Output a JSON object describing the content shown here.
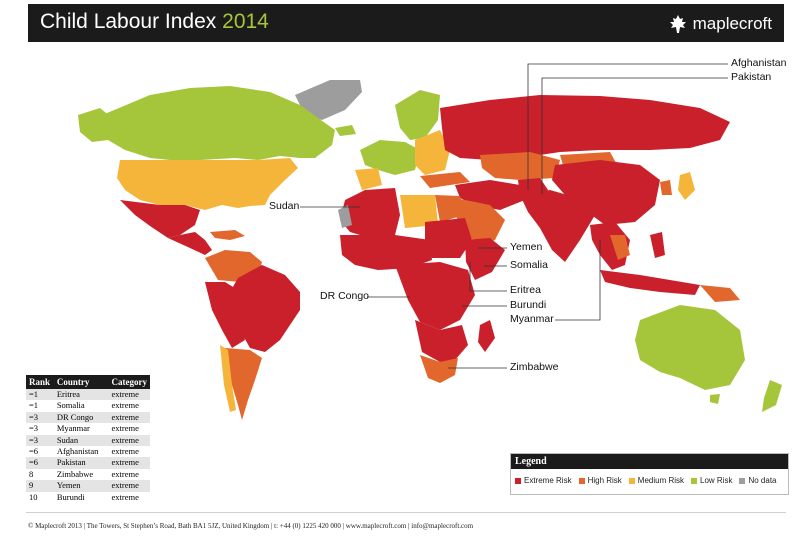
{
  "header": {
    "title": "Child Labour Index",
    "year": "2014",
    "brand": "maplecroft",
    "logo_icon": "maple-leaf-icon"
  },
  "colors": {
    "extreme": "#c9202b",
    "high": "#e2672c",
    "medium": "#f4b53a",
    "low": "#a5c63a",
    "nodata": "#9d9d9d",
    "ocean": "#ffffff"
  },
  "callouts": {
    "afghanistan": "Afghanistan",
    "pakistan": "Pakistan",
    "sudan": "Sudan",
    "yemen": "Yemen",
    "somalia": "Somalia",
    "eritrea": "Eritrea",
    "burundi": "Burundi",
    "dr_congo": "DR Congo",
    "myanmar": "Myanmar",
    "zimbabwe": "Zimbabwe"
  },
  "ranking": {
    "headers": [
      "Rank",
      "Country",
      "Category"
    ],
    "rows": [
      [
        "=1",
        "Eritrea",
        "extreme"
      ],
      [
        "=1",
        "Somalia",
        "extreme"
      ],
      [
        "=3",
        "DR Congo",
        "extreme"
      ],
      [
        "=3",
        "Myanmar",
        "extreme"
      ],
      [
        "=3",
        "Sudan",
        "extreme"
      ],
      [
        "=6",
        "Afghanistan",
        "extreme"
      ],
      [
        "=6",
        "Pakistan",
        "extreme"
      ],
      [
        "8",
        "Zimbabwe",
        "extreme"
      ],
      [
        "9",
        "Yemen",
        "extreme"
      ],
      [
        "10",
        "Burundi",
        "extreme"
      ]
    ]
  },
  "legend": {
    "title": "Legend",
    "items": [
      {
        "label": "Extreme Risk",
        "color": "#c9202b"
      },
      {
        "label": "High Risk",
        "color": "#e2672c"
      },
      {
        "label": "Medium Risk",
        "color": "#f4b53a"
      },
      {
        "label": "Low Risk",
        "color": "#a5c63a"
      },
      {
        "label": "No data",
        "color": "#9d9d9d"
      }
    ]
  },
  "footer": "© Maplecroft 2013 | The Towers, St Stephen’s Road, Bath BA1 5JZ, United Kingdom | t: +44 (0) 1225 420 000 | www.maplecroft.com | info@maplecroft.com"
}
